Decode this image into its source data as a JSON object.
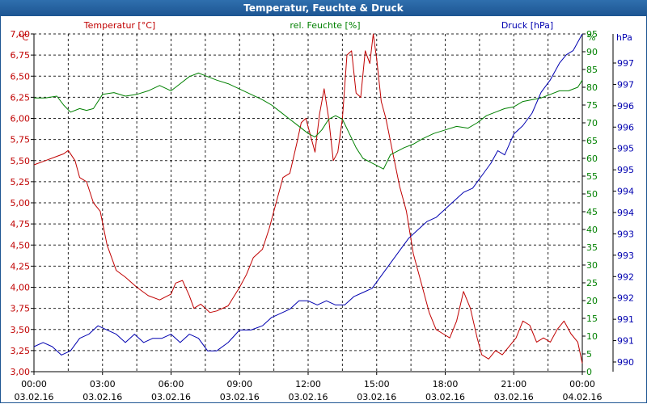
{
  "title": "Temperatur, Feuchte & Druck",
  "colors": {
    "temperature": "#c00000",
    "humidity": "#008000",
    "pressure": "#0000b0",
    "grid": "#000000",
    "title_bar": "#1d5592"
  },
  "chart_data": {
    "type": "line",
    "title": "Temperatur, Feuchte & Druck",
    "x_tick_labels": [
      {
        "time": "00:00",
        "date": "03.02.16"
      },
      {
        "time": "03:00",
        "date": "03.02.16"
      },
      {
        "time": "06:00",
        "date": "03.02.16"
      },
      {
        "time": "09:00",
        "date": "03.02.16"
      },
      {
        "time": "12:00",
        "date": "03.02.16"
      },
      {
        "time": "15:00",
        "date": "03.02.16"
      },
      {
        "time": "18:00",
        "date": "03.02.16"
      },
      {
        "time": "21:00",
        "date": "03.02.16"
      },
      {
        "time": "00:00",
        "date": "04.02.16"
      }
    ],
    "x_range_hours": [
      0,
      24
    ],
    "axes": {
      "temperature": {
        "unit_label": "°C",
        "ylim": [
          3.0,
          7.0
        ],
        "ticks": [
          "3,00",
          "3,25",
          "3,50",
          "3,75",
          "4,00",
          "4,25",
          "4,50",
          "4,75",
          "5,00",
          "5,25",
          "5,50",
          "5,75",
          "6,00",
          "6,25",
          "6,50",
          "6,75",
          "7,00"
        ]
      },
      "humidity": {
        "unit_label": "%",
        "ylim": [
          0,
          95
        ],
        "ticks": [
          "0",
          "5",
          "10",
          "15",
          "20",
          "25",
          "30",
          "35",
          "40",
          "45",
          "50",
          "55",
          "60",
          "65",
          "70",
          "75",
          "80",
          "85",
          "90",
          "95"
        ]
      },
      "pressure": {
        "unit_label": "hPa",
        "ylim": [
          989.6,
          997.7
        ],
        "ticks": [
          "990",
          "991",
          "991",
          "992",
          "992",
          "993",
          "993",
          "994",
          "994",
          "995",
          "995",
          "996",
          "996",
          "997",
          "997"
        ]
      }
    },
    "series": [
      {
        "name": "Temperatur [°C]",
        "axis": "temperature",
        "x": [
          0,
          0.5,
          1,
          1.3,
          1.5,
          1.8,
          2,
          2.3,
          2.6,
          2.9,
          3.2,
          3.6,
          4,
          4.5,
          5,
          5.5,
          6,
          6.2,
          6.5,
          6.8,
          7,
          7.3,
          7.7,
          8,
          8.5,
          9,
          9.3,
          9.6,
          10,
          10.3,
          10.6,
          10.9,
          11.2,
          11.5,
          11.7,
          11.9,
          12.1,
          12.3,
          12.5,
          12.7,
          12.9,
          13.1,
          13.3,
          13.5,
          13.7,
          13.9,
          14.1,
          14.3,
          14.5,
          14.7,
          14.85,
          15,
          15.2,
          15.4,
          15.7,
          16,
          16.3,
          16.6,
          17,
          17.3,
          17.6,
          17.9,
          18.2,
          18.5,
          18.8,
          19.1,
          19.4,
          19.6,
          19.9,
          20.2,
          20.5,
          20.8,
          21.1,
          21.4,
          21.7,
          22,
          22.3,
          22.6,
          22.9,
          23.2,
          23.5,
          23.8,
          24
        ],
        "y": [
          5.45,
          5.5,
          5.55,
          5.58,
          5.62,
          5.5,
          5.3,
          5.25,
          5.0,
          4.9,
          4.5,
          4.2,
          4.12,
          4.0,
          3.9,
          3.85,
          3.92,
          4.05,
          4.08,
          3.9,
          3.75,
          3.8,
          3.7,
          3.72,
          3.78,
          4.0,
          4.15,
          4.35,
          4.45,
          4.7,
          5.0,
          5.3,
          5.35,
          5.7,
          5.95,
          6.0,
          5.8,
          5.6,
          6.05,
          6.35,
          6.0,
          5.5,
          5.6,
          6.0,
          6.75,
          6.8,
          6.3,
          6.25,
          6.8,
          6.65,
          7.0,
          6.7,
          6.2,
          6.0,
          5.6,
          5.2,
          4.9,
          4.4,
          4.0,
          3.7,
          3.5,
          3.45,
          3.4,
          3.6,
          3.95,
          3.75,
          3.4,
          3.2,
          3.15,
          3.25,
          3.2,
          3.3,
          3.4,
          3.6,
          3.55,
          3.35,
          3.4,
          3.35,
          3.5,
          3.6,
          3.45,
          3.35,
          3.1
        ]
      },
      {
        "name": "rel. Feuchte [%]",
        "axis": "humidity",
        "x": [
          0,
          0.5,
          1,
          1.3,
          1.6,
          2,
          2.3,
          2.6,
          3,
          3.5,
          4,
          4.5,
          5,
          5.5,
          6,
          6.4,
          6.8,
          7.2,
          7.6,
          8,
          8.5,
          9,
          9.5,
          10,
          10.4,
          10.8,
          11.2,
          11.5,
          11.8,
          12,
          12.3,
          12.6,
          12.9,
          13.2,
          13.5,
          13.8,
          14.1,
          14.4,
          14.7,
          15,
          15.3,
          15.6,
          15.9,
          16.2,
          16.6,
          17,
          17.5,
          18,
          18.5,
          19,
          19.4,
          19.8,
          20.2,
          20.6,
          21,
          21.4,
          21.8,
          22.2,
          22.6,
          23,
          23.4,
          23.8,
          24
        ],
        "y": [
          77,
          77,
          77.5,
          75,
          73,
          74,
          73.5,
          74,
          78,
          78.5,
          77.5,
          78,
          79,
          80.5,
          79,
          81,
          83,
          84,
          83,
          82,
          81,
          79.5,
          78,
          76.5,
          75,
          73,
          71,
          69.5,
          68,
          67,
          66,
          68,
          71,
          72,
          71,
          67,
          63,
          60,
          59,
          58,
          57,
          61,
          62,
          63,
          64,
          65.5,
          67,
          68,
          69,
          68.5,
          70,
          72,
          73,
          74,
          74.5,
          76,
          76.5,
          77,
          78,
          79,
          79,
          80,
          82
        ]
      },
      {
        "name": "Druck [hPa]",
        "axis": "pressure",
        "x": [
          0,
          0.4,
          0.8,
          1.2,
          1.6,
          2,
          2.4,
          2.8,
          3.2,
          3.6,
          4,
          4.4,
          4.8,
          5.2,
          5.6,
          6,
          6.4,
          6.8,
          7.2,
          7.6,
          8,
          8.5,
          9,
          9.5,
          10,
          10.4,
          10.8,
          11.2,
          11.6,
          12,
          12.4,
          12.8,
          13.2,
          13.6,
          14,
          14.4,
          14.8,
          15.2,
          15.6,
          16,
          16.4,
          16.8,
          17.2,
          17.6,
          18,
          18.4,
          18.8,
          19.2,
          19.6,
          20,
          20.3,
          20.6,
          21,
          21.4,
          21.8,
          22.2,
          22.6,
          23,
          23.3,
          23.6,
          24
        ],
        "y": [
          990.2,
          990.3,
          990.2,
          990.0,
          990.1,
          990.4,
          990.5,
          990.7,
          990.6,
          990.5,
          990.3,
          990.5,
          990.3,
          990.4,
          990.4,
          990.5,
          990.3,
          990.5,
          990.4,
          990.1,
          990.1,
          990.3,
          990.6,
          990.6,
          990.7,
          990.9,
          991.0,
          991.1,
          991.3,
          991.3,
          991.2,
          991.3,
          991.2,
          991.2,
          991.4,
          991.5,
          991.6,
          991.9,
          992.2,
          992.5,
          992.8,
          993.0,
          993.2,
          993.3,
          993.5,
          993.7,
          993.9,
          994.0,
          994.3,
          994.6,
          994.9,
          994.8,
          995.3,
          995.5,
          995.8,
          996.3,
          996.6,
          997.0,
          997.2,
          997.3,
          997.7
        ]
      }
    ]
  }
}
